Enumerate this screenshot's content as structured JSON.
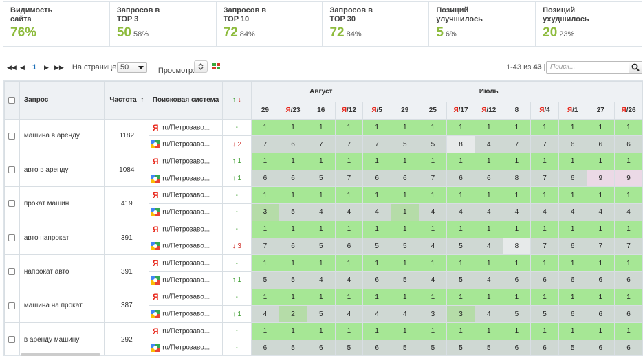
{
  "stats": [
    {
      "label": "Видимость\nсайта",
      "value": "76%",
      "pct": ""
    },
    {
      "label": "Запросов в\nTOP 3",
      "value": "50",
      "pct": "58%"
    },
    {
      "label": "Запросов в\nTOP 10",
      "value": "72",
      "pct": "84%"
    },
    {
      "label": "Запросов в\nTOP 30",
      "value": "72",
      "pct": "84%"
    },
    {
      "label": "Позиций\nулучшилось",
      "value": "5",
      "pct": "6%"
    },
    {
      "label": "Позиций\nухудшилось",
      "value": "20",
      "pct": "23%"
    }
  ],
  "toolbar": {
    "first": "◀◀",
    "prev": "◀",
    "page": "1",
    "next": "▶",
    "last": "▶▶",
    "per_page_label": "| На странице:",
    "per_page_value": "50",
    "view_label": "| Просмотр:",
    "range_text": "1-43 из",
    "range_total": "43",
    "range_suffix": "|",
    "search_placeholder": "Поиск..."
  },
  "headers": {
    "query": "Запрос",
    "freq": "Частота",
    "freq_sort": "↑",
    "engine": "Поисковая система",
    "change_up": "↑",
    "change_down": "↓",
    "month1": "Август",
    "month2": "Июль"
  },
  "dates": [
    {
      "ya": "",
      "d": "29"
    },
    {
      "ya": "Я",
      "d": "/23"
    },
    {
      "ya": "",
      "d": "16"
    },
    {
      "ya": "Я",
      "d": "/12"
    },
    {
      "ya": "Я",
      "d": "/5"
    },
    {
      "ya": "",
      "d": "29"
    },
    {
      "ya": "",
      "d": "25"
    },
    {
      "ya": "Я",
      "d": "/17"
    },
    {
      "ya": "Я",
      "d": "/12"
    },
    {
      "ya": "",
      "d": "8"
    },
    {
      "ya": "Я",
      "d": "/4"
    },
    {
      "ya": "Я",
      "d": "/1"
    },
    {
      "ya": "",
      "d": "27"
    },
    {
      "ya": "Я",
      "d": "/26"
    }
  ],
  "rows": [
    {
      "query": "машина в аренду",
      "freq": "1182",
      "y": {
        "region": "ru/Петрозаво...",
        "change": "-",
        "dir": "nz",
        "pos": [
          "1",
          "1",
          "1",
          "1",
          "1",
          "1",
          "1",
          "1",
          "1",
          "1",
          "1",
          "1",
          "1",
          "1"
        ],
        "cls": "gggggggggggggg"
      },
      "g": {
        "region": "ru/Петрозаво...",
        "change": "↓ 2",
        "dir": "dn",
        "pos": [
          "7",
          "6",
          "7",
          "7",
          "7",
          "5",
          "5",
          "8",
          "4",
          "7",
          "7",
          "6",
          "6",
          "6"
        ],
        "cls": "rrrrrrrlrrrrrr"
      }
    },
    {
      "query": "авто в аренду",
      "freq": "1084",
      "y": {
        "region": "ru/Петрозаво...",
        "change": "↑ 1",
        "dir": "up",
        "pos": [
          "1",
          "1",
          "1",
          "1",
          "1",
          "1",
          "1",
          "1",
          "1",
          "1",
          "1",
          "1",
          "1",
          "1"
        ],
        "cls": "gggggggggggggg"
      },
      "g": {
        "region": "ru/Петрозаво...",
        "change": "↑ 1",
        "dir": "up",
        "pos": [
          "6",
          "6",
          "5",
          "7",
          "6",
          "6",
          "7",
          "6",
          "6",
          "8",
          "7",
          "6",
          "9",
          "9"
        ],
        "cls": "rrrrrrrrrrrrpp"
      }
    },
    {
      "query": "прокат машин",
      "freq": "419",
      "y": {
        "region": "ru/Петрозаво...",
        "change": "-",
        "dir": "nz",
        "pos": [
          "1",
          "1",
          "1",
          "1",
          "1",
          "1",
          "1",
          "1",
          "1",
          "1",
          "1",
          "1",
          "1",
          "1"
        ],
        "cls": "gggggggggggggg"
      },
      "g": {
        "region": "ru/Петрозаво...",
        "change": "-",
        "dir": "nz",
        "pos": [
          "3",
          "5",
          "4",
          "4",
          "4",
          "1",
          "4",
          "4",
          "4",
          "4",
          "4",
          "4",
          "4",
          "4"
        ],
        "cls": "drrrrdrrrrrrrr"
      }
    },
    {
      "query": "авто напрокат",
      "freq": "391",
      "y": {
        "region": "ru/Петрозаво...",
        "change": "-",
        "dir": "nz",
        "pos": [
          "1",
          "1",
          "1",
          "1",
          "1",
          "1",
          "1",
          "1",
          "1",
          "1",
          "1",
          "1",
          "1",
          "1"
        ],
        "cls": "gggggggggggggg"
      },
      "g": {
        "region": "ru/Петрозаво...",
        "change": "↓ 3",
        "dir": "dn",
        "pos": [
          "7",
          "6",
          "5",
          "6",
          "5",
          "5",
          "4",
          "5",
          "4",
          "8",
          "7",
          "6",
          "7",
          "7"
        ],
        "cls": "rrrrrrrrrlrrrr"
      }
    },
    {
      "query": "напрокат авто",
      "freq": "391",
      "y": {
        "region": "ru/Петрозаво...",
        "change": "-",
        "dir": "nz",
        "pos": [
          "1",
          "1",
          "1",
          "1",
          "1",
          "1",
          "1",
          "1",
          "1",
          "1",
          "1",
          "1",
          "1",
          "1"
        ],
        "cls": "gggggggggggggg"
      },
      "g": {
        "region": "ru/Петрозаво...",
        "change": "↑ 1",
        "dir": "up",
        "pos": [
          "5",
          "5",
          "4",
          "4",
          "6",
          "5",
          "4",
          "5",
          "4",
          "6",
          "6",
          "6",
          "6",
          "6"
        ],
        "cls": "rrrrrrrrrrrrrr"
      }
    },
    {
      "query": "машина на прокат",
      "freq": "387",
      "y": {
        "region": "ru/Петрозаво...",
        "change": "-",
        "dir": "nz",
        "pos": [
          "1",
          "1",
          "1",
          "1",
          "1",
          "1",
          "1",
          "1",
          "1",
          "1",
          "1",
          "1",
          "1",
          "1"
        ],
        "cls": "gggggggggggggg"
      },
      "g": {
        "region": "ru/Петрозаво...",
        "change": "↑ 1",
        "dir": "up",
        "pos": [
          "4",
          "2",
          "5",
          "4",
          "4",
          "4",
          "3",
          "3",
          "4",
          "5",
          "5",
          "6",
          "6",
          "6"
        ],
        "cls": "rdrrrrrdrrrrrr"
      }
    },
    {
      "query": "в аренду машину",
      "freq": "292",
      "y": {
        "region": "ru/Петрозаво...",
        "change": "-",
        "dir": "nz",
        "pos": [
          "1",
          "1",
          "1",
          "1",
          "1",
          "1",
          "1",
          "1",
          "1",
          "1",
          "1",
          "1",
          "1",
          "1"
        ],
        "cls": "gggggggggggggg"
      },
      "g": {
        "region": "ru/Петрозаво...",
        "change": "-",
        "dir": "nz",
        "pos": [
          "6",
          "5",
          "6",
          "5",
          "6",
          "5",
          "5",
          "5",
          "5",
          "6",
          "6",
          "5",
          "6",
          "6"
        ],
        "cls": "rrrrrrrrrrrrrr"
      }
    }
  ]
}
